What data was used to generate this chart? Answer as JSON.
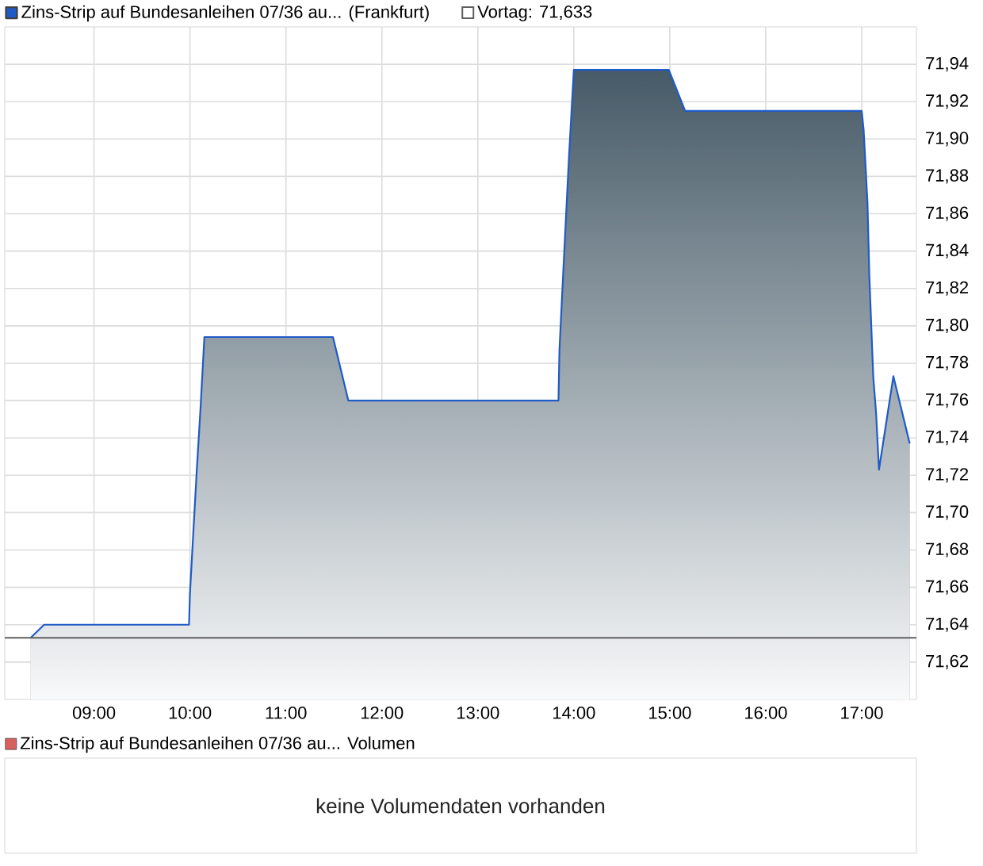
{
  "chart_data": [
    {
      "type": "area",
      "x": [
        8.34,
        8.48,
        9.99,
        10.0,
        10.07,
        10.11,
        10.15,
        11.49,
        11.65,
        13.84,
        13.85,
        13.89,
        13.95,
        14.0,
        14.99,
        15.16,
        17.0,
        17.02,
        17.06,
        17.08,
        17.12,
        17.15,
        17.18,
        17.33,
        17.5
      ],
      "series": [
        {
          "name": "Zins-Strip auf Bundesanleihen 07/36 au... (Frankfurt)",
          "color": "#1f5bc6",
          "values": [
            71.633,
            71.64,
            71.64,
            71.657,
            71.722,
            71.756,
            71.794,
            71.794,
            71.76,
            71.76,
            71.787,
            71.829,
            71.891,
            71.937,
            71.937,
            71.915,
            71.915,
            71.905,
            71.866,
            71.826,
            71.773,
            71.753,
            71.723,
            71.773,
            71.737
          ]
        }
      ],
      "xlim": [
        8.07,
        17.57
      ],
      "xticks": [
        {
          "value": 9,
          "label": "09:00"
        },
        {
          "value": 10,
          "label": "10:00"
        },
        {
          "value": 11,
          "label": "11:00"
        },
        {
          "value": 12,
          "label": "12:00"
        },
        {
          "value": 13,
          "label": "13:00"
        },
        {
          "value": 14,
          "label": "14:00"
        },
        {
          "value": 15,
          "label": "15:00"
        },
        {
          "value": 16,
          "label": "16:00"
        },
        {
          "value": 17,
          "label": "17:00"
        }
      ],
      "ylim": [
        71.6,
        71.96
      ],
      "yticks": [
        {
          "value": 71.62,
          "label": "71,62"
        },
        {
          "value": 71.64,
          "label": "71,64"
        },
        {
          "value": 71.66,
          "label": "71,66"
        },
        {
          "value": 71.68,
          "label": "71,68"
        },
        {
          "value": 71.7,
          "label": "71,70"
        },
        {
          "value": 71.72,
          "label": "71,72"
        },
        {
          "value": 71.74,
          "label": "71,74"
        },
        {
          "value": 71.76,
          "label": "71,76"
        },
        {
          "value": 71.78,
          "label": "71,78"
        },
        {
          "value": 71.8,
          "label": "71,80"
        },
        {
          "value": 71.82,
          "label": "71,82"
        },
        {
          "value": 71.84,
          "label": "71,84"
        },
        {
          "value": 71.86,
          "label": "71,86"
        },
        {
          "value": 71.88,
          "label": "71,88"
        },
        {
          "value": 71.9,
          "label": "71,90"
        },
        {
          "value": 71.92,
          "label": "71,92"
        },
        {
          "value": 71.94,
          "label": "71,94"
        }
      ],
      "grid": true,
      "legend": "top left",
      "ref_lines": [
        {
          "axis": "y",
          "value": 71.633,
          "label": "Vortag: 71,633",
          "color": "#5f5f5f"
        }
      ]
    },
    {
      "type": "other",
      "series": [
        {
          "name": "Zins-Strip auf Bundesanleihen 07/36 au... Volumen",
          "color": "#d9605c"
        }
      ],
      "legend": "top left",
      "annotations": [
        "keine Volumendaten vorhanden"
      ]
    }
  ]
}
